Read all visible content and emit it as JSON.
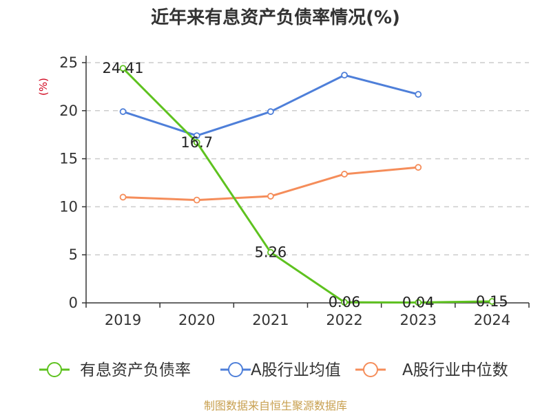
{
  "chart_data": {
    "type": "line",
    "title": "近年来有息资产负债率情况(%)",
    "ylabel": "(%)",
    "categories": [
      "2019",
      "2020",
      "2021",
      "2022",
      "2023",
      "2024"
    ],
    "ylim": [
      0,
      25
    ],
    "yticks": [
      0,
      5,
      10,
      15,
      20,
      25
    ],
    "grid": true,
    "legend_position": "bottom",
    "series": [
      {
        "name": "有息资产负债率",
        "color": "#5ec21f",
        "values": [
          24.41,
          16.7,
          5.26,
          0.06,
          0.04,
          0.15
        ],
        "labels": [
          "24.41",
          "16.7",
          "5.26",
          "0.06",
          "0.04",
          "0.15"
        ]
      },
      {
        "name": "A股行业均值",
        "color": "#4e7fd9",
        "values": [
          19.9,
          17.4,
          19.9,
          23.7,
          21.7,
          null
        ]
      },
      {
        "name": "A股行业中位数",
        "color": "#f58d5a",
        "values": [
          11.0,
          10.7,
          11.1,
          13.4,
          14.1,
          null
        ]
      }
    ],
    "source": "制图数据来自恒生聚源数据库"
  }
}
